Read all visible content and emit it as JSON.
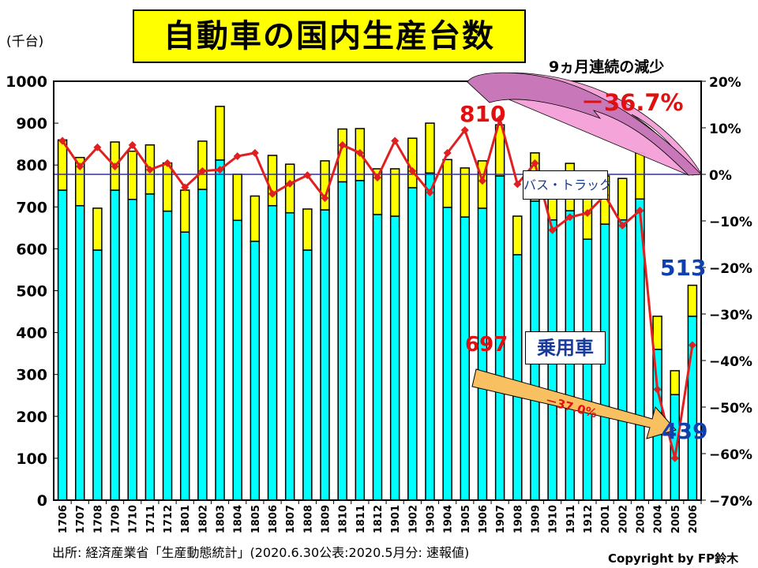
{
  "title": "自動車の国内生産台数",
  "unit_label": "(千台)",
  "annotations": {
    "streak": "9ヵ月連続の減少",
    "total_change": "－36.7%",
    "car_change": "－37.0%",
    "peak_total": "810",
    "peak_car": "697",
    "latest_total": "513",
    "latest_car": "439"
  },
  "legend": {
    "truck": "バス・トラック",
    "car": "乗用車"
  },
  "source": "出所: 経済産業省「生産動態統計」(2020.6.30公表:2020.5月分: 速報値)",
  "copyright": "Copyright by FP鈴木",
  "colors": {
    "car": "#00ffff",
    "truck": "#ffff00",
    "line": "#e02020",
    "zero_line": "#3030a0",
    "title_bg": "#ffff00"
  },
  "chart_data": {
    "type": "bar",
    "stacked": true,
    "categories": [
      "1706",
      "1707",
      "1708",
      "1709",
      "1710",
      "1711",
      "1712",
      "1801",
      "1802",
      "1803",
      "1804",
      "1805",
      "1806",
      "1807",
      "1808",
      "1809",
      "1810",
      "1811",
      "1812",
      "1901",
      "1902",
      "1903",
      "1904",
      "1905",
      "1906",
      "1907",
      "1908",
      "1909",
      "1910",
      "1911",
      "1912",
      "2001",
      "2002",
      "2003",
      "2004",
      "2005",
      "2006"
    ],
    "series": [
      {
        "name": "乗用車",
        "values": [
          740,
          703,
          597,
          740,
          718,
          731,
          690,
          640,
          742,
          812,
          668,
          618,
          703,
          686,
          597,
          693,
          760,
          763,
          682,
          678,
          746,
          781,
          699,
          676,
          697,
          774,
          586,
          714,
          669,
          691,
          623,
          659,
          669,
          719,
          360,
          252,
          439
        ]
      },
      {
        "name": "バス・トラック",
        "values": [
          120,
          115,
          100,
          115,
          115,
          117,
          115,
          100,
          115,
          128,
          110,
          108,
          120,
          116,
          98,
          117,
          126,
          124,
          109,
          113,
          118,
          119,
          114,
          117,
          113,
          122,
          92,
          115,
          110,
          113,
          130,
          115,
          99,
          110,
          79,
          57,
          74
        ]
      }
    ],
    "line": {
      "axis": "right",
      "values": [
        7.2,
        1.7,
        5.8,
        1.7,
        6.3,
        1.0,
        2.4,
        -2.8,
        0.7,
        1.0,
        3.9,
        4.6,
        -4.2,
        -2.0,
        -0.2,
        -5.1,
        6.3,
        4.6,
        -0.7,
        7.2,
        0.7,
        -3.9,
        4.6,
        9.5,
        -1.4,
        11.9,
        -2.1,
        2.4,
        -12.0,
        -9.2,
        -8.3,
        -4.5,
        -11.0,
        -7.8,
        -46.2,
        -61.0,
        -36.7
      ]
    },
    "ylim": [
      0,
      1000
    ],
    "yticks": [
      "0",
      "100",
      "200",
      "300",
      "400",
      "500",
      "600",
      "700",
      "800",
      "900",
      "1000"
    ],
    "y2lim": [
      -70,
      20
    ],
    "y2ticks": [
      "20%",
      "10%",
      "0%",
      "−10%",
      "−20%",
      "−30%",
      "−40%",
      "−50%",
      "−60%",
      "−70%"
    ],
    "grid": false
  }
}
